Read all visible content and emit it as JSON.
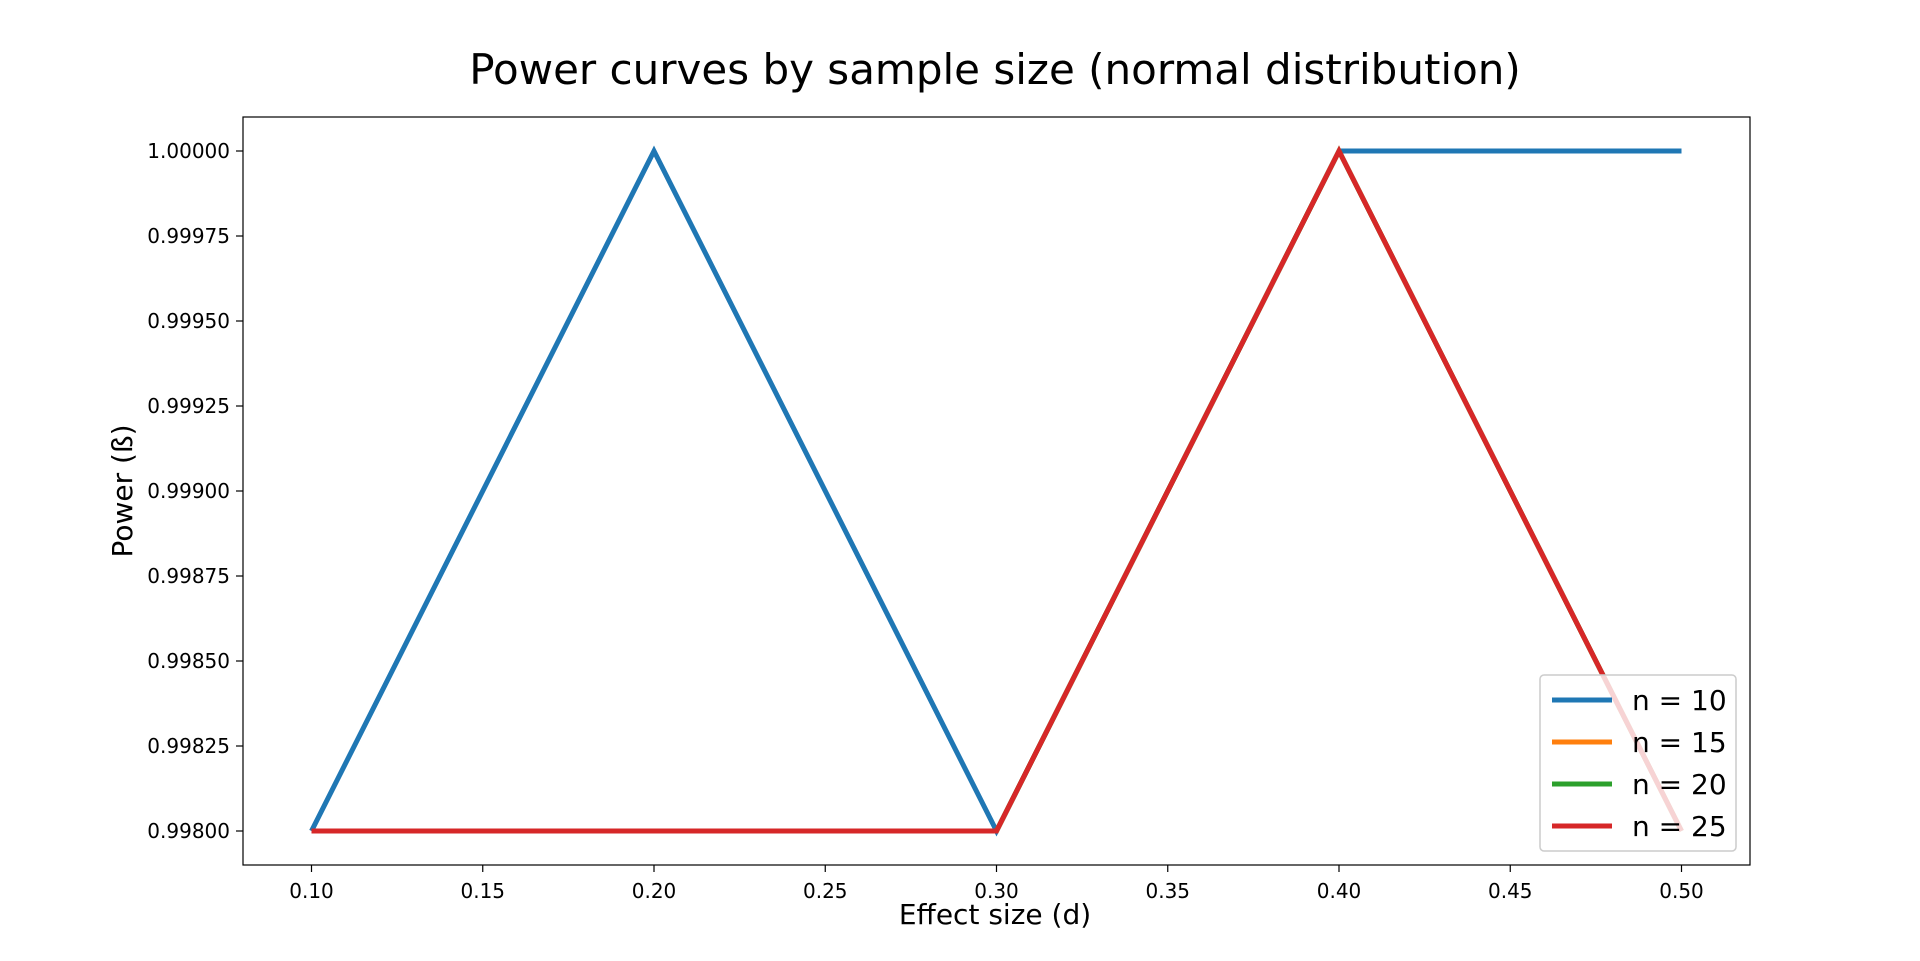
{
  "chart_data": {
    "type": "line",
    "title": "Power curves by sample size (normal distribution)",
    "xlabel": "Effect size (d)",
    "ylabel": "Power (ß)",
    "x": [
      0.1,
      0.2,
      0.3,
      0.4,
      0.5
    ],
    "xlim": [
      0.08,
      0.52
    ],
    "ylim": [
      0.9979,
      1.0001
    ],
    "xticks": [
      "0.10",
      "0.15",
      "0.20",
      "0.25",
      "0.30",
      "0.35",
      "0.40",
      "0.45",
      "0.50"
    ],
    "yticks": [
      "0.99800",
      "0.99825",
      "0.99850",
      "0.99875",
      "0.99900",
      "0.99925",
      "0.99950",
      "0.99975",
      "1.00000"
    ],
    "grid": false,
    "legend_position": "bottom-right",
    "series": [
      {
        "name": "n = 10",
        "color": "#1f77b4",
        "values": [
          0.998,
          1.0,
          0.998,
          1.0,
          1.0
        ]
      },
      {
        "name": "n = 15",
        "color": "#ff7f0e",
        "values": [
          0.998,
          0.998,
          0.998,
          1.0,
          0.998
        ]
      },
      {
        "name": "n = 20",
        "color": "#2ca02c",
        "values": [
          0.998,
          0.998,
          0.998,
          1.0,
          0.998
        ]
      },
      {
        "name": "n = 25",
        "color": "#d62728",
        "values": [
          0.998,
          0.998,
          0.998,
          1.0,
          0.998
        ]
      }
    ]
  }
}
